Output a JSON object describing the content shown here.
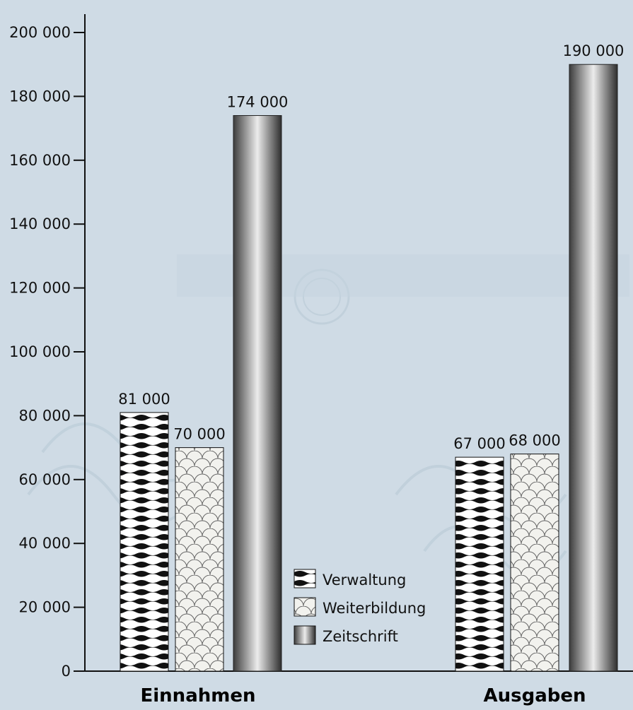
{
  "chart_data": {
    "type": "bar",
    "categories": [
      "Einnahmen",
      "Ausgaben"
    ],
    "series": [
      {
        "name": "Verwaltung",
        "values": [
          81000,
          67000
        ],
        "labels": [
          "81 000",
          "67 000"
        ],
        "pattern": "waves"
      },
      {
        "name": "Weiterbildung",
        "values": [
          70000,
          68000
        ],
        "labels": [
          "70 000",
          "68 000"
        ],
        "pattern": "scales"
      },
      {
        "name": "Zeitschrift",
        "values": [
          174000,
          190000
        ],
        "labels": [
          "174 000",
          "190 000"
        ],
        "pattern": "cylinder"
      }
    ],
    "ylim": [
      0,
      200000
    ],
    "yticks": [
      0,
      20000,
      40000,
      60000,
      80000,
      100000,
      120000,
      140000,
      160000,
      180000,
      200000
    ],
    "ytick_labels": [
      "0",
      "20 000",
      "40 000",
      "60 000",
      "80 000",
      "100 000",
      "120 000",
      "140 000",
      "160 000",
      "180 000",
      "200 000"
    ],
    "legend_position": "bottom-center",
    "grid": false,
    "colors": {
      "background": "#cfdbe5",
      "axis": "#111111",
      "cylinder_dark": "#3a3a3a",
      "cylinder_light": "#e6e6e6"
    }
  }
}
